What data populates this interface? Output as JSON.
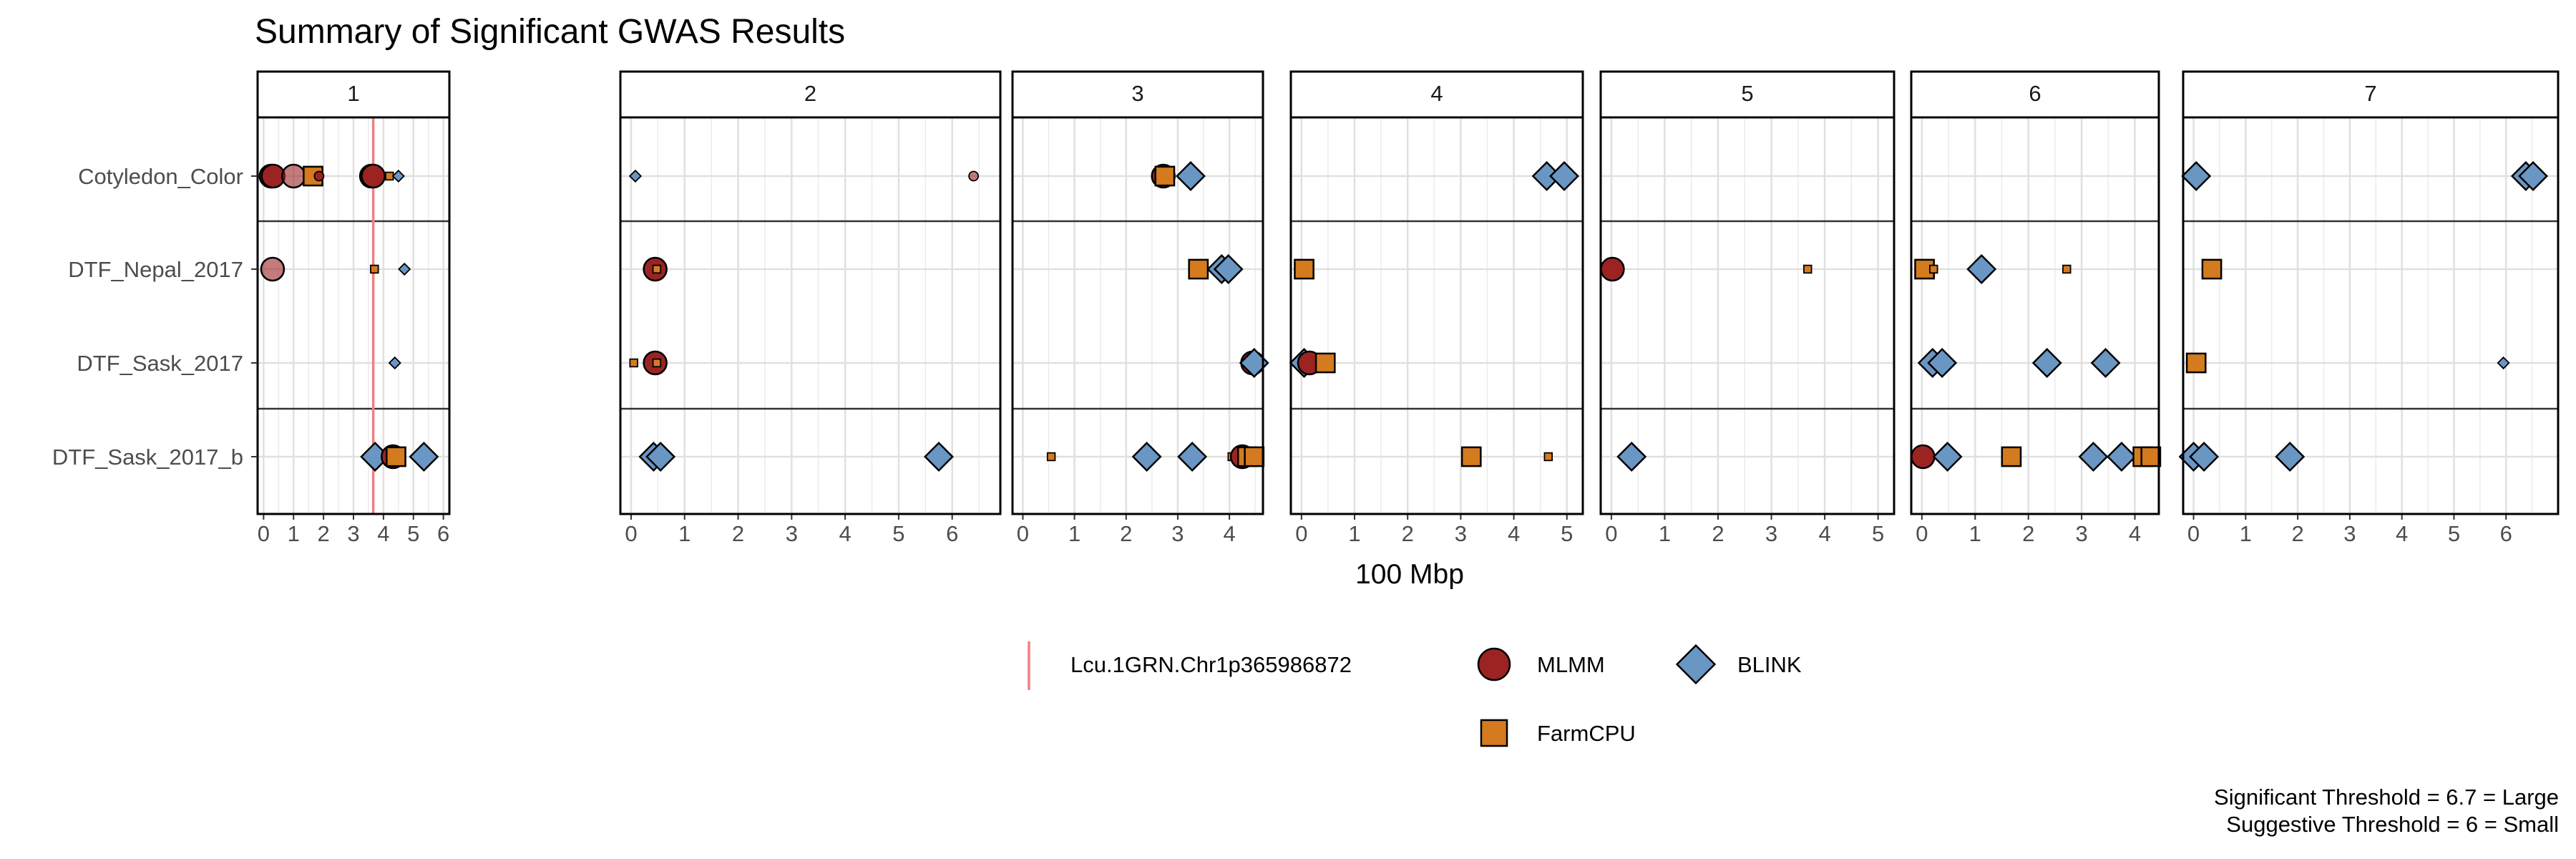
{
  "chart_data": {
    "type": "scatter",
    "title": "Summary of Significant GWAS Results",
    "xlabel": "100 Mbp",
    "ylabel": "",
    "grid": true,
    "legend_position": "bottom",
    "rows": [
      "Cotyledon_Color",
      "DTF_Nepal_2017",
      "DTF_Sask_2017",
      "DTF_Sask_2017_b"
    ],
    "panels": [
      {
        "label": "1",
        "xlim": [
          -0.2,
          6.2
        ],
        "ticks": [
          "0",
          "1",
          "2",
          "3",
          "4",
          "5",
          "6"
        ]
      },
      {
        "label": "2",
        "xlim": [
          -0.2,
          6.9
        ],
        "ticks": [
          "0",
          "1",
          "2",
          "3",
          "4",
          "5",
          "6"
        ]
      },
      {
        "label": "3",
        "xlim": [
          -0.2,
          4.65
        ],
        "ticks": [
          "0",
          "1",
          "2",
          "3",
          "4"
        ]
      },
      {
        "label": "4",
        "xlim": [
          -0.2,
          5.3
        ],
        "ticks": [
          "0",
          "1",
          "2",
          "3",
          "4",
          "5"
        ]
      },
      {
        "label": "5",
        "xlim": [
          -0.2,
          5.3
        ],
        "ticks": [
          "0",
          "1",
          "2",
          "3",
          "4",
          "5"
        ]
      },
      {
        "label": "6",
        "xlim": [
          -0.2,
          4.45
        ],
        "ticks": [
          "0",
          "1",
          "2",
          "3",
          "4"
        ]
      },
      {
        "label": "7",
        "xlim": [
          -0.2,
          7.0
        ],
        "ticks": [
          "0",
          "1",
          "2",
          "3",
          "4",
          "5",
          "6"
        ]
      }
    ],
    "separators_after_rows": [
      0,
      2
    ],
    "colors": {
      "MLMM": "#9B2423",
      "FarmCPU": "#D47A1F",
      "BLINK": "#6A96C4",
      "vline": "#F08080"
    },
    "vlines": [
      {
        "panel": "1",
        "x": 3.66,
        "label": "Lcu.1GRN.Chr1p365986872"
      }
    ],
    "points": [
      {
        "panel": "1",
        "row": 0,
        "method": "MLMM",
        "x": 0.25,
        "size": "large"
      },
      {
        "panel": "1",
        "row": 0,
        "method": "MLMM",
        "x": 0.32,
        "size": "large"
      },
      {
        "panel": "1",
        "row": 0,
        "method": "MLMM",
        "x": 1.0,
        "size": "large",
        "alpha": 0.6
      },
      {
        "panel": "1",
        "row": 0,
        "method": "FarmCPU",
        "x": 1.65,
        "size": "large"
      },
      {
        "panel": "1",
        "row": 0,
        "method": "MLMM",
        "x": 1.85,
        "size": "small"
      },
      {
        "panel": "1",
        "row": 0,
        "method": "MLMM",
        "x": 3.6,
        "size": "large"
      },
      {
        "panel": "1",
        "row": 0,
        "method": "MLMM",
        "x": 3.66,
        "size": "large"
      },
      {
        "panel": "1",
        "row": 0,
        "method": "FarmCPU",
        "x": 4.2,
        "size": "small"
      },
      {
        "panel": "1",
        "row": 0,
        "method": "BLINK",
        "x": 4.5,
        "size": "small"
      },
      {
        "panel": "1",
        "row": 1,
        "method": "MLMM",
        "x": 0.3,
        "size": "large",
        "alpha": 0.6
      },
      {
        "panel": "1",
        "row": 1,
        "method": "FarmCPU",
        "x": 3.7,
        "size": "small"
      },
      {
        "panel": "1",
        "row": 1,
        "method": "BLINK",
        "x": 4.7,
        "size": "small"
      },
      {
        "panel": "1",
        "row": 2,
        "method": "BLINK",
        "x": 4.38,
        "size": "small"
      },
      {
        "panel": "1",
        "row": 3,
        "method": "BLINK",
        "x": 3.72,
        "size": "large"
      },
      {
        "panel": "1",
        "row": 3,
        "method": "MLMM",
        "x": 4.32,
        "size": "large"
      },
      {
        "panel": "1",
        "row": 3,
        "method": "FarmCPU",
        "x": 4.42,
        "size": "large"
      },
      {
        "panel": "1",
        "row": 3,
        "method": "BLINK",
        "x": 5.35,
        "size": "large"
      },
      {
        "panel": "2",
        "row": 0,
        "method": "BLINK",
        "x": 0.08,
        "size": "small"
      },
      {
        "panel": "2",
        "row": 0,
        "method": "MLMM",
        "x": 6.4,
        "size": "small",
        "alpha": 0.6
      },
      {
        "panel": "2",
        "row": 1,
        "method": "MLMM",
        "x": 0.45,
        "size": "large"
      },
      {
        "panel": "2",
        "row": 1,
        "method": "FarmCPU",
        "x": 0.48,
        "size": "small"
      },
      {
        "panel": "2",
        "row": 2,
        "method": "FarmCPU",
        "x": 0.05,
        "size": "small"
      },
      {
        "panel": "2",
        "row": 2,
        "method": "MLMM",
        "x": 0.45,
        "size": "large"
      },
      {
        "panel": "2",
        "row": 2,
        "method": "FarmCPU",
        "x": 0.48,
        "size": "small"
      },
      {
        "panel": "2",
        "row": 3,
        "method": "BLINK",
        "x": 0.42,
        "size": "large"
      },
      {
        "panel": "2",
        "row": 3,
        "method": "BLINK",
        "x": 0.55,
        "size": "large"
      },
      {
        "panel": "2",
        "row": 3,
        "method": "BLINK",
        "x": 5.75,
        "size": "large"
      },
      {
        "panel": "3",
        "row": 0,
        "method": "MLMM",
        "x": 2.72,
        "size": "large"
      },
      {
        "panel": "3",
        "row": 0,
        "method": "FarmCPU",
        "x": 2.75,
        "size": "large"
      },
      {
        "panel": "3",
        "row": 0,
        "method": "BLINK",
        "x": 3.25,
        "size": "large"
      },
      {
        "panel": "3",
        "row": 1,
        "method": "FarmCPU",
        "x": 3.4,
        "size": "large"
      },
      {
        "panel": "3",
        "row": 1,
        "method": "BLINK",
        "x": 3.85,
        "size": "large"
      },
      {
        "panel": "3",
        "row": 1,
        "method": "BLINK",
        "x": 3.98,
        "size": "large"
      },
      {
        "panel": "3",
        "row": 2,
        "method": "MLMM",
        "x": 4.45,
        "size": "large"
      },
      {
        "panel": "3",
        "row": 2,
        "method": "BLINK",
        "x": 4.48,
        "size": "large"
      },
      {
        "panel": "3",
        "row": 3,
        "method": "FarmCPU",
        "x": 0.55,
        "size": "small"
      },
      {
        "panel": "3",
        "row": 3,
        "method": "BLINK",
        "x": 2.4,
        "size": "large"
      },
      {
        "panel": "3",
        "row": 3,
        "method": "BLINK",
        "x": 3.28,
        "size": "large"
      },
      {
        "panel": "3",
        "row": 3,
        "method": "FarmCPU",
        "x": 4.05,
        "size": "small"
      },
      {
        "panel": "3",
        "row": 3,
        "method": "MLMM",
        "x": 4.25,
        "size": "large"
      },
      {
        "panel": "3",
        "row": 3,
        "method": "FarmCPU",
        "x": 4.35,
        "size": "large"
      },
      {
        "panel": "3",
        "row": 3,
        "method": "FarmCPU",
        "x": 4.48,
        "size": "large"
      },
      {
        "panel": "4",
        "row": 0,
        "method": "BLINK",
        "x": 4.62,
        "size": "large"
      },
      {
        "panel": "4",
        "row": 0,
        "method": "BLINK",
        "x": 4.95,
        "size": "large"
      },
      {
        "panel": "4",
        "row": 1,
        "method": "FarmCPU",
        "x": 0.05,
        "size": "large"
      },
      {
        "panel": "4",
        "row": 2,
        "method": "BLINK",
        "x": 0.05,
        "size": "large"
      },
      {
        "panel": "4",
        "row": 2,
        "method": "MLMM",
        "x": 0.15,
        "size": "large"
      },
      {
        "panel": "4",
        "row": 2,
        "method": "FarmCPU",
        "x": 0.45,
        "size": "large"
      },
      {
        "panel": "4",
        "row": 3,
        "method": "FarmCPU",
        "x": 3.2,
        "size": "large"
      },
      {
        "panel": "4",
        "row": 3,
        "method": "FarmCPU",
        "x": 4.65,
        "size": "small"
      },
      {
        "panel": "5",
        "row": 1,
        "method": "MLMM",
        "x": 0.02,
        "size": "large"
      },
      {
        "panel": "5",
        "row": 1,
        "method": "FarmCPU",
        "x": 3.68,
        "size": "small"
      },
      {
        "panel": "5",
        "row": 3,
        "method": "BLINK",
        "x": 0.38,
        "size": "large"
      },
      {
        "panel": "6",
        "row": 1,
        "method": "FarmCPU",
        "x": 0.05,
        "size": "large"
      },
      {
        "panel": "6",
        "row": 1,
        "method": "FarmCPU",
        "x": 0.22,
        "size": "small"
      },
      {
        "panel": "6",
        "row": 1,
        "method": "BLINK",
        "x": 1.12,
        "size": "large"
      },
      {
        "panel": "6",
        "row": 1,
        "method": "FarmCPU",
        "x": 2.72,
        "size": "small"
      },
      {
        "panel": "6",
        "row": 2,
        "method": "BLINK",
        "x": 0.2,
        "size": "large"
      },
      {
        "panel": "6",
        "row": 2,
        "method": "BLINK",
        "x": 0.38,
        "size": "large"
      },
      {
        "panel": "6",
        "row": 2,
        "method": "BLINK",
        "x": 2.35,
        "size": "large"
      },
      {
        "panel": "6",
        "row": 2,
        "method": "BLINK",
        "x": 3.45,
        "size": "large"
      },
      {
        "panel": "6",
        "row": 3,
        "method": "MLMM",
        "x": 0.02,
        "size": "large"
      },
      {
        "panel": "6",
        "row": 3,
        "method": "BLINK",
        "x": 0.48,
        "size": "large"
      },
      {
        "panel": "6",
        "row": 3,
        "method": "FarmCPU",
        "x": 1.68,
        "size": "large"
      },
      {
        "panel": "6",
        "row": 3,
        "method": "BLINK",
        "x": 3.22,
        "size": "large"
      },
      {
        "panel": "6",
        "row": 3,
        "method": "BLINK",
        "x": 3.75,
        "size": "large"
      },
      {
        "panel": "6",
        "row": 3,
        "method": "FarmCPU",
        "x": 4.15,
        "size": "large"
      },
      {
        "panel": "6",
        "row": 3,
        "method": "FarmCPU",
        "x": 4.3,
        "size": "large"
      },
      {
        "panel": "7",
        "row": 0,
        "method": "BLINK",
        "x": 0.05,
        "size": "large"
      },
      {
        "panel": "7",
        "row": 0,
        "method": "BLINK",
        "x": 6.38,
        "size": "large"
      },
      {
        "panel": "7",
        "row": 0,
        "method": "BLINK",
        "x": 6.52,
        "size": "large"
      },
      {
        "panel": "7",
        "row": 1,
        "method": "FarmCPU",
        "x": 0.35,
        "size": "large"
      },
      {
        "panel": "7",
        "row": 2,
        "method": "FarmCPU",
        "x": 0.05,
        "size": "large"
      },
      {
        "panel": "7",
        "row": 2,
        "method": "BLINK",
        "x": 5.95,
        "size": "small"
      },
      {
        "panel": "7",
        "row": 3,
        "method": "BLINK",
        "x": 0.0,
        "size": "large"
      },
      {
        "panel": "7",
        "row": 3,
        "method": "BLINK",
        "x": 0.2,
        "size": "large"
      },
      {
        "panel": "7",
        "row": 3,
        "method": "BLINK",
        "x": 1.85,
        "size": "large"
      }
    ],
    "legend": [
      {
        "type": "vline",
        "label": "Lcu.1GRN.Chr1p365986872"
      },
      {
        "type": "MLMM",
        "label": "MLMM"
      },
      {
        "type": "BLINK",
        "label": "BLINK"
      },
      {
        "type": "FarmCPU",
        "label": "FarmCPU"
      }
    ],
    "caption": [
      "Significant Threshold = 6.7 = Large",
      "Suggestive Threshold = 6 = Small"
    ]
  }
}
